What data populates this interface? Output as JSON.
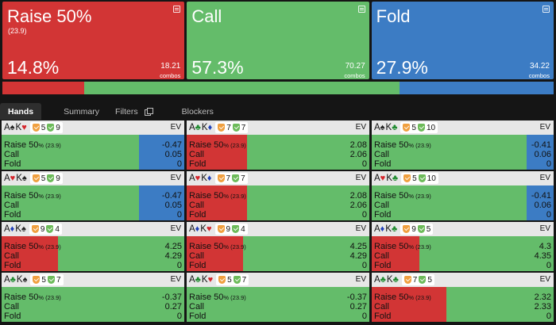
{
  "colors": {
    "raise": "#d23535",
    "call": "#64bc6a",
    "fold": "#3c7cc4"
  },
  "actions": [
    {
      "name": "Raise 50%",
      "sub": "(23.9)",
      "pct": "14.8%",
      "combos": "18.21",
      "combos_label": "combos",
      "color": "#d23535",
      "icon": "expand-icon"
    },
    {
      "name": "Call",
      "sub": "",
      "pct": "57.3%",
      "combos": "70.27",
      "combos_label": "combos",
      "color": "#64bc6a",
      "icon": "expand-icon"
    },
    {
      "name": "Fold",
      "sub": "",
      "pct": "27.9%",
      "combos": "34.22",
      "combos_label": "combos",
      "color": "#3c7cc4",
      "icon": "expand-icon"
    }
  ],
  "freq_bar": [
    {
      "action": "Raise 50%",
      "fraction": 0.148
    },
    {
      "action": "Call",
      "fraction": 0.573
    },
    {
      "action": "Fold",
      "fraction": 0.279
    }
  ],
  "tabs": [
    {
      "label": "Hands",
      "active": true
    },
    {
      "label": "Summary",
      "active": false
    },
    {
      "label": "Filters",
      "active": false,
      "icon": "copy-icon"
    },
    {
      "label": "Blockers",
      "active": false
    }
  ],
  "labels": {
    "ev": "EV",
    "raise": "Raise 50",
    "raise_sub": "% (23.9)",
    "call": "Call",
    "fold": "Fold"
  },
  "cells": [
    {
      "cards": [
        [
          "A",
          "♠",
          "blk"
        ],
        [
          "K",
          "♥",
          "red"
        ]
      ],
      "b1": "5",
      "b2": "9",
      "ev": [
        "-0.47",
        "0.05",
        "0"
      ],
      "freq": [
        0,
        0.75,
        0.25
      ]
    },
    {
      "cards": [
        [
          "A",
          "♣",
          "grn"
        ],
        [
          "K",
          "♦",
          "blu"
        ]
      ],
      "b1": "7",
      "b2": "7",
      "ev": [
        "2.08",
        "2.06",
        "0"
      ],
      "freq": [
        0.33,
        0.67,
        0
      ]
    },
    {
      "cards": [
        [
          "A",
          "♠",
          "blk"
        ],
        [
          "K",
          "♣",
          "grn"
        ]
      ],
      "b1": "5",
      "b2": "10",
      "ev": [
        "-0.41",
        "0.06",
        "0"
      ],
      "freq": [
        0,
        0.85,
        0.15
      ]
    },
    {
      "cards": [
        [
          "A",
          "♥",
          "red"
        ],
        [
          "K",
          "♠",
          "blk"
        ]
      ],
      "b1": "5",
      "b2": "9",
      "ev": [
        "-0.47",
        "0.05",
        "0"
      ],
      "freq": [
        0,
        0.75,
        0.25
      ]
    },
    {
      "cards": [
        [
          "A",
          "♥",
          "red"
        ],
        [
          "K",
          "♦",
          "blu"
        ]
      ],
      "b1": "7",
      "b2": "7",
      "ev": [
        "2.08",
        "2.06",
        "0"
      ],
      "freq": [
        0.33,
        0.67,
        0
      ]
    },
    {
      "cards": [
        [
          "A",
          "♥",
          "red"
        ],
        [
          "K",
          "♣",
          "grn"
        ]
      ],
      "b1": "5",
      "b2": "10",
      "ev": [
        "-0.41",
        "0.06",
        "0"
      ],
      "freq": [
        0,
        0.85,
        0.15
      ]
    },
    {
      "cards": [
        [
          "A",
          "♦",
          "blu"
        ],
        [
          "K",
          "♠",
          "blk"
        ]
      ],
      "b1": "9",
      "b2": "4",
      "ev": [
        "4.25",
        "4.29",
        "0"
      ],
      "freq": [
        0.31,
        0.69,
        0
      ]
    },
    {
      "cards": [
        [
          "A",
          "♦",
          "blu"
        ],
        [
          "K",
          "♥",
          "red"
        ]
      ],
      "b1": "9",
      "b2": "4",
      "ev": [
        "4.25",
        "4.29",
        "0"
      ],
      "freq": [
        0.31,
        0.69,
        0
      ]
    },
    {
      "cards": [
        [
          "A",
          "♦",
          "blu"
        ],
        [
          "K",
          "♣",
          "grn"
        ]
      ],
      "b1": "9",
      "b2": "5",
      "ev": [
        "4.3",
        "4.35",
        "0"
      ],
      "freq": [
        0.26,
        0.74,
        0
      ]
    },
    {
      "cards": [
        [
          "A",
          "♣",
          "grn"
        ],
        [
          "K",
          "♠",
          "blk"
        ]
      ],
      "b1": "5",
      "b2": "7",
      "ev": [
        "-0.37",
        "0.27",
        "0"
      ],
      "freq": [
        0,
        1,
        0
      ]
    },
    {
      "cards": [
        [
          "A",
          "♣",
          "grn"
        ],
        [
          "K",
          "♥",
          "red"
        ]
      ],
      "b1": "5",
      "b2": "7",
      "ev": [
        "-0.37",
        "0.27",
        "0"
      ],
      "freq": [
        0,
        1,
        0
      ]
    },
    {
      "cards": [
        [
          "A",
          "♣",
          "grn"
        ],
        [
          "K",
          "♣",
          "grn"
        ]
      ],
      "b1": "7",
      "b2": "5",
      "ev": [
        "2.32",
        "2.33",
        "0"
      ],
      "freq": [
        0.41,
        0.59,
        0
      ]
    }
  ]
}
